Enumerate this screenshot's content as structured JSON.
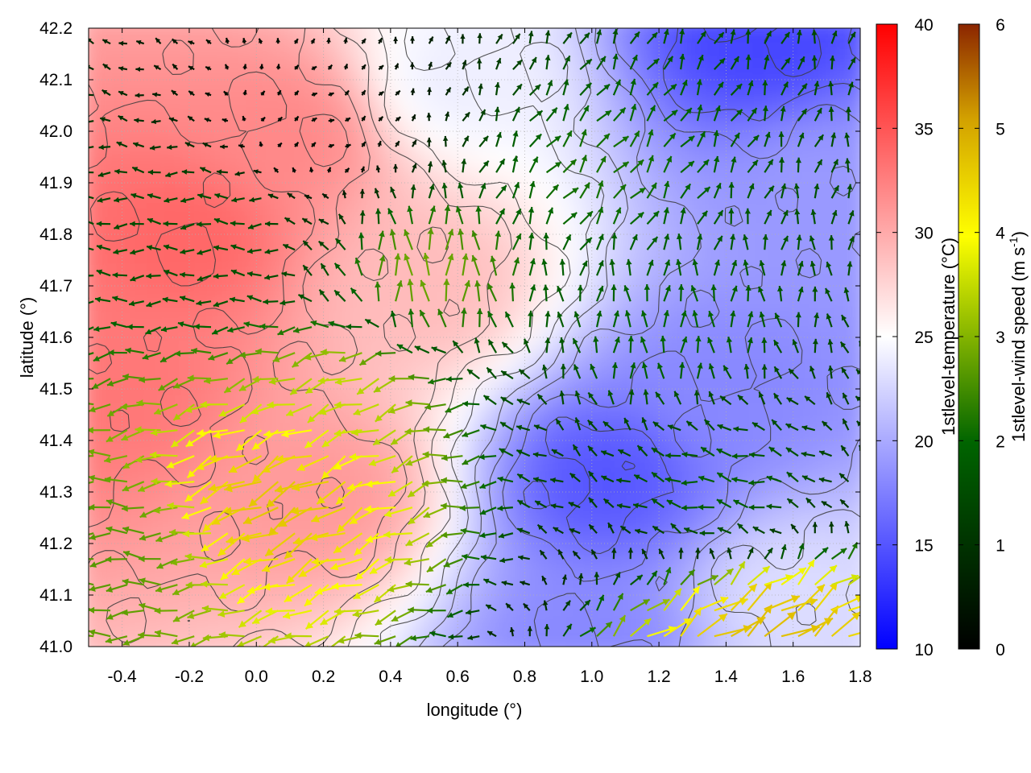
{
  "chart_data": {
    "type": "heatmap",
    "title": "",
    "xlabel": "longitude (°)",
    "ylabel": "latitude (°)",
    "xlim": [
      -0.5,
      1.8
    ],
    "ylim": [
      41.0,
      42.2
    ],
    "x_ticks": [
      -0.4,
      -0.2,
      0.0,
      0.2,
      0.4,
      0.6,
      0.8,
      1.0,
      1.2,
      1.4,
      1.6,
      1.8
    ],
    "x_tick_labels": [
      "-0.4",
      "-0.2",
      "0.0",
      "0.2",
      "0.4",
      "0.6",
      "0.8",
      "1.0",
      "1.2",
      "1.4",
      "1.6",
      "1.8"
    ],
    "y_ticks": [
      41.0,
      41.1,
      41.2,
      41.3,
      41.4,
      41.5,
      41.6,
      41.7,
      41.8,
      41.9,
      42.0,
      42.1,
      42.2
    ],
    "y_tick_labels": [
      "41.0",
      "41.1",
      "41.2",
      "41.3",
      "41.4",
      "41.5",
      "41.6",
      "41.7",
      "41.8",
      "41.9",
      "42.0",
      "42.1",
      "42.2"
    ],
    "grid": true,
    "temperature_colorbar": {
      "label": "1stlevel-temperature (°C)",
      "range": [
        10,
        40
      ],
      "ticks": [
        10,
        15,
        20,
        25,
        30,
        35,
        40
      ],
      "tick_labels": [
        "10",
        "15",
        "20",
        "25",
        "30",
        "35",
        "40"
      ],
      "colors": [
        "#0000ff",
        "#ffffff",
        "#ff0000"
      ]
    },
    "wind_colorbar": {
      "label": "1stlevel-wind speed (m s-1)",
      "label_main": "1stlevel-wind speed (m s",
      "label_sup": "-1",
      "label_end": ")",
      "range": [
        0,
        6
      ],
      "ticks": [
        0,
        1,
        2,
        3,
        4,
        5,
        6
      ],
      "tick_labels": [
        "0",
        "1",
        "2",
        "3",
        "4",
        "5",
        "6"
      ],
      "colors": [
        "#000000",
        "#006400",
        "#ffff00",
        "#d2a000",
        "#8b2500"
      ]
    },
    "temperature_regions": [
      {
        "lon": -0.4,
        "lat": 41.5,
        "value": 33
      },
      {
        "lon": -0.2,
        "lat": 41.8,
        "value": 34
      },
      {
        "lon": 0.1,
        "lat": 42.0,
        "value": 32
      },
      {
        "lon": 0.2,
        "lat": 41.3,
        "value": 31
      },
      {
        "lon": 0.5,
        "lat": 41.7,
        "value": 29
      },
      {
        "lon": 0.6,
        "lat": 42.1,
        "value": 24
      },
      {
        "lon": 1.05,
        "lat": 41.33,
        "value": 15
      },
      {
        "lon": 1.0,
        "lat": 41.0,
        "value": 18
      },
      {
        "lon": 1.5,
        "lat": 42.18,
        "value": 14
      },
      {
        "lon": 1.4,
        "lat": 41.5,
        "value": 18
      },
      {
        "lon": 1.7,
        "lat": 41.9,
        "value": 19
      },
      {
        "lon": 1.6,
        "lat": 41.1,
        "value": 23
      }
    ],
    "wind_regions": [
      {
        "lon": -0.4,
        "lat": 41.2,
        "u": -2.0,
        "v": 0.0
      },
      {
        "lon": 0.1,
        "lat": 41.3,
        "u": -3.5,
        "v": -1.8
      },
      {
        "lon": 0.3,
        "lat": 41.5,
        "u": -2.5,
        "v": -1.0
      },
      {
        "lon": 0.5,
        "lat": 41.7,
        "u": 0.0,
        "v": 2.2
      },
      {
        "lon": 0.2,
        "lat": 42.0,
        "u": 0.2,
        "v": 0.1
      },
      {
        "lon": 1.5,
        "lat": 41.0,
        "u": 3.4,
        "v": 2.2
      },
      {
        "lon": 1.0,
        "lat": 41.9,
        "u": 1.0,
        "v": 1.3
      },
      {
        "lon": 1.2,
        "lat": 41.6,
        "u": 0.0,
        "v": 1.5
      },
      {
        "lon": 1.4,
        "lat": 41.3,
        "u": -1.4,
        "v": 0.3
      },
      {
        "lon": -0.1,
        "lat": 41.8,
        "u": -1.2,
        "v": 0.0
      }
    ]
  }
}
